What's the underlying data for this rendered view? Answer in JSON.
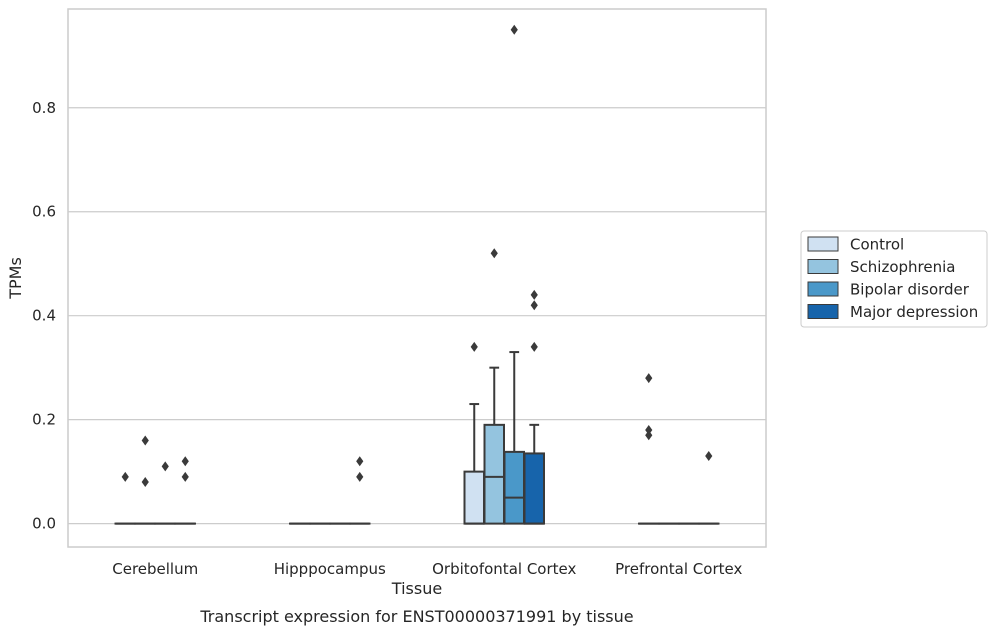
{
  "chart_data": {
    "type": "box",
    "xlabel": "Tissue",
    "ylabel": "TPMs",
    "caption": "Transcript expression for ENST00000371991 by tissue",
    "ylim": [
      -0.045,
      0.99
    ],
    "yticks": [
      0.0,
      0.2,
      0.4,
      0.6,
      0.8
    ],
    "ytick_labels": [
      "0.0",
      "0.2",
      "0.4",
      "0.6",
      "0.8"
    ],
    "grid": true,
    "legend_position": "right",
    "categories": [
      "Cerebellum",
      "Hipppocampus",
      "Orbitofontal Cortex",
      "Prefrontal Cortex"
    ],
    "series": [
      {
        "name": "Control",
        "color": "#d0e1f2",
        "boxes": [
          {
            "q1": 0,
            "median": 0,
            "q3": 0,
            "whisker_low": 0,
            "whisker_high": 0,
            "outliers": [
              0.09
            ]
          },
          {
            "q1": 0,
            "median": 0,
            "q3": 0,
            "whisker_low": 0,
            "whisker_high": 0,
            "outliers": []
          },
          {
            "q1": 0,
            "median": 0,
            "q3": 0.1,
            "whisker_low": 0,
            "whisker_high": 0.23,
            "outliers": [
              0.34
            ]
          },
          {
            "q1": 0,
            "median": 0,
            "q3": 0,
            "whisker_low": 0,
            "whisker_high": 0,
            "outliers": [
              0.28,
              0.18,
              0.17
            ]
          }
        ]
      },
      {
        "name": "Schizophrenia",
        "color": "#94c4df",
        "boxes": [
          {
            "q1": 0,
            "median": 0,
            "q3": 0,
            "whisker_low": 0,
            "whisker_high": 0,
            "outliers": [
              0.16,
              0.08
            ]
          },
          {
            "q1": 0,
            "median": 0,
            "q3": 0,
            "whisker_low": 0,
            "whisker_high": 0,
            "outliers": []
          },
          {
            "q1": 0,
            "median": 0.09,
            "q3": 0.19,
            "whisker_low": 0,
            "whisker_high": 0.3,
            "outliers": [
              0.52
            ]
          },
          {
            "q1": 0,
            "median": 0,
            "q3": 0,
            "whisker_low": 0,
            "whisker_high": 0,
            "outliers": []
          }
        ]
      },
      {
        "name": "Bipolar disorder",
        "color": "#4a98c9",
        "boxes": [
          {
            "q1": 0,
            "median": 0,
            "q3": 0,
            "whisker_low": 0,
            "whisker_high": 0,
            "outliers": [
              0.11
            ]
          },
          {
            "q1": 0,
            "median": 0,
            "q3": 0,
            "whisker_low": 0,
            "whisker_high": 0,
            "outliers": []
          },
          {
            "q1": 0,
            "median": 0.05,
            "q3": 0.138,
            "whisker_low": 0,
            "whisker_high": 0.33,
            "outliers": [
              0.95
            ]
          },
          {
            "q1": 0,
            "median": 0,
            "q3": 0,
            "whisker_low": 0,
            "whisker_high": 0,
            "outliers": []
          }
        ]
      },
      {
        "name": "Major depression",
        "color": "#1764ab",
        "boxes": [
          {
            "q1": 0,
            "median": 0,
            "q3": 0,
            "whisker_low": 0,
            "whisker_high": 0,
            "outliers": [
              0.12,
              0.09
            ]
          },
          {
            "q1": 0,
            "median": 0,
            "q3": 0,
            "whisker_low": 0,
            "whisker_high": 0,
            "outliers": [
              0.12,
              0.09
            ]
          },
          {
            "q1": 0,
            "median": 0,
            "q3": 0.135,
            "whisker_low": 0,
            "whisker_high": 0.19,
            "outliers": [
              0.44,
              0.42,
              0.34
            ]
          },
          {
            "q1": 0,
            "median": 0,
            "q3": 0,
            "whisker_low": 0,
            "whisker_high": 0,
            "outliers": [
              0.13
            ]
          }
        ]
      }
    ]
  }
}
